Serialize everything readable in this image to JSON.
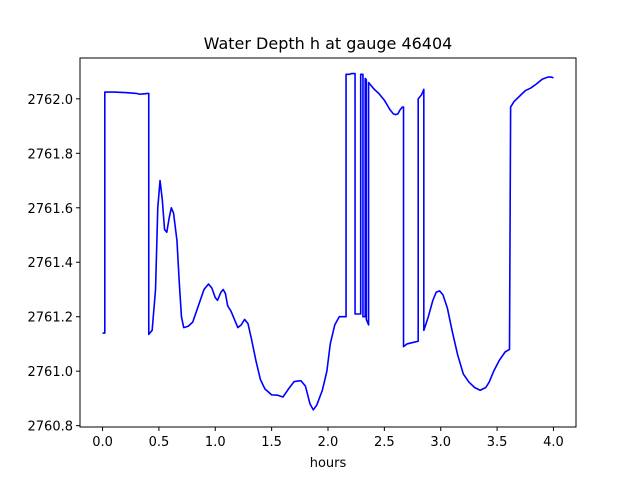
{
  "chart_data": {
    "type": "line",
    "title": "Water Depth h at gauge 46404",
    "xlabel": "hours",
    "ylabel": "",
    "xlim": [
      -0.2,
      4.2
    ],
    "ylim": [
      2760.795,
      2762.15
    ],
    "x_ticks": [
      "0.0",
      "0.5",
      "1.0",
      "1.5",
      "2.0",
      "2.5",
      "3.0",
      "3.5",
      "4.0"
    ],
    "y_ticks": [
      "2760.8",
      "2761.0",
      "2761.2",
      "2761.4",
      "2761.6",
      "2761.8",
      "2762.0"
    ],
    "grid": false,
    "series": [
      {
        "color": "#0000ff",
        "points": [
          [
            0.0,
            2761.14
          ],
          [
            0.02,
            2761.14
          ],
          [
            0.02,
            2762.025
          ],
          [
            0.1,
            2762.025
          ],
          [
            0.2,
            2762.023
          ],
          [
            0.3,
            2762.02
          ],
          [
            0.33,
            2762.017
          ],
          [
            0.36,
            2762.018
          ],
          [
            0.4,
            2762.02
          ],
          [
            0.41,
            2762.02
          ],
          [
            0.41,
            2761.135
          ],
          [
            0.44,
            2761.15
          ],
          [
            0.47,
            2761.3
          ],
          [
            0.49,
            2761.6
          ],
          [
            0.51,
            2761.7
          ],
          [
            0.53,
            2761.63
          ],
          [
            0.55,
            2761.52
          ],
          [
            0.57,
            2761.51
          ],
          [
            0.59,
            2761.56
          ],
          [
            0.61,
            2761.6
          ],
          [
            0.63,
            2761.58
          ],
          [
            0.66,
            2761.48
          ],
          [
            0.68,
            2761.33
          ],
          [
            0.7,
            2761.2
          ],
          [
            0.72,
            2761.16
          ],
          [
            0.76,
            2761.165
          ],
          [
            0.8,
            2761.18
          ],
          [
            0.85,
            2761.24
          ],
          [
            0.9,
            2761.3
          ],
          [
            0.94,
            2761.32
          ],
          [
            0.97,
            2761.305
          ],
          [
            1.0,
            2761.27
          ],
          [
            1.02,
            2761.26
          ],
          [
            1.05,
            2761.29
          ],
          [
            1.07,
            2761.3
          ],
          [
            1.09,
            2761.285
          ],
          [
            1.11,
            2761.24
          ],
          [
            1.14,
            2761.22
          ],
          [
            1.17,
            2761.19
          ],
          [
            1.2,
            2761.16
          ],
          [
            1.23,
            2761.17
          ],
          [
            1.26,
            2761.19
          ],
          [
            1.29,
            2761.175
          ],
          [
            1.32,
            2761.12
          ],
          [
            1.36,
            2761.04
          ],
          [
            1.4,
            2760.97
          ],
          [
            1.44,
            2760.935
          ],
          [
            1.5,
            2760.913
          ],
          [
            1.55,
            2760.912
          ],
          [
            1.6,
            2760.905
          ],
          [
            1.65,
            2760.935
          ],
          [
            1.7,
            2760.962
          ],
          [
            1.76,
            2760.965
          ],
          [
            1.8,
            2760.945
          ],
          [
            1.84,
            2760.88
          ],
          [
            1.87,
            2760.858
          ],
          [
            1.9,
            2760.875
          ],
          [
            1.95,
            2760.93
          ],
          [
            1.99,
            2761.0
          ],
          [
            2.02,
            2761.1
          ],
          [
            2.06,
            2761.17
          ],
          [
            2.1,
            2761.2
          ],
          [
            2.15,
            2761.2
          ],
          [
            2.16,
            2761.2
          ],
          [
            2.16,
            2762.09
          ],
          [
            2.19,
            2762.09
          ],
          [
            2.21,
            2762.093
          ],
          [
            2.24,
            2762.093
          ],
          [
            2.24,
            2761.21
          ],
          [
            2.29,
            2761.21
          ],
          [
            2.29,
            2762.09
          ],
          [
            2.31,
            2762.09
          ],
          [
            2.31,
            2761.2
          ],
          [
            2.33,
            2761.2
          ],
          [
            2.33,
            2762.075
          ],
          [
            2.34,
            2762.07
          ],
          [
            2.34,
            2761.19
          ],
          [
            2.36,
            2761.17
          ],
          [
            2.36,
            2762.06
          ],
          [
            2.38,
            2762.05
          ],
          [
            2.41,
            2762.035
          ],
          [
            2.45,
            2762.02
          ],
          [
            2.5,
            2761.995
          ],
          [
            2.55,
            2761.96
          ],
          [
            2.58,
            2761.945
          ],
          [
            2.6,
            2761.942
          ],
          [
            2.62,
            2761.945
          ],
          [
            2.64,
            2761.96
          ],
          [
            2.66,
            2761.97
          ],
          [
            2.67,
            2761.97
          ],
          [
            2.67,
            2761.09
          ],
          [
            2.7,
            2761.1
          ],
          [
            2.75,
            2761.105
          ],
          [
            2.8,
            2761.11
          ],
          [
            2.8,
            2762.0
          ],
          [
            2.83,
            2762.015
          ],
          [
            2.85,
            2762.035
          ],
          [
            2.85,
            2761.15
          ],
          [
            2.89,
            2761.2
          ],
          [
            2.93,
            2761.26
          ],
          [
            2.96,
            2761.29
          ],
          [
            2.99,
            2761.295
          ],
          [
            3.02,
            2761.28
          ],
          [
            3.06,
            2761.23
          ],
          [
            3.1,
            2761.15
          ],
          [
            3.15,
            2761.06
          ],
          [
            3.2,
            2760.99
          ],
          [
            3.25,
            2760.96
          ],
          [
            3.3,
            2760.94
          ],
          [
            3.35,
            2760.93
          ],
          [
            3.4,
            2760.94
          ],
          [
            3.43,
            2760.96
          ],
          [
            3.47,
            2761.0
          ],
          [
            3.52,
            2761.04
          ],
          [
            3.57,
            2761.07
          ],
          [
            3.61,
            2761.08
          ],
          [
            3.62,
            2761.97
          ],
          [
            3.65,
            2761.99
          ],
          [
            3.7,
            2762.01
          ],
          [
            3.75,
            2762.03
          ],
          [
            3.8,
            2762.04
          ],
          [
            3.85,
            2762.055
          ],
          [
            3.9,
            2762.072
          ],
          [
            3.95,
            2762.08
          ],
          [
            3.98,
            2762.08
          ],
          [
            4.0,
            2762.077
          ]
        ]
      }
    ]
  }
}
